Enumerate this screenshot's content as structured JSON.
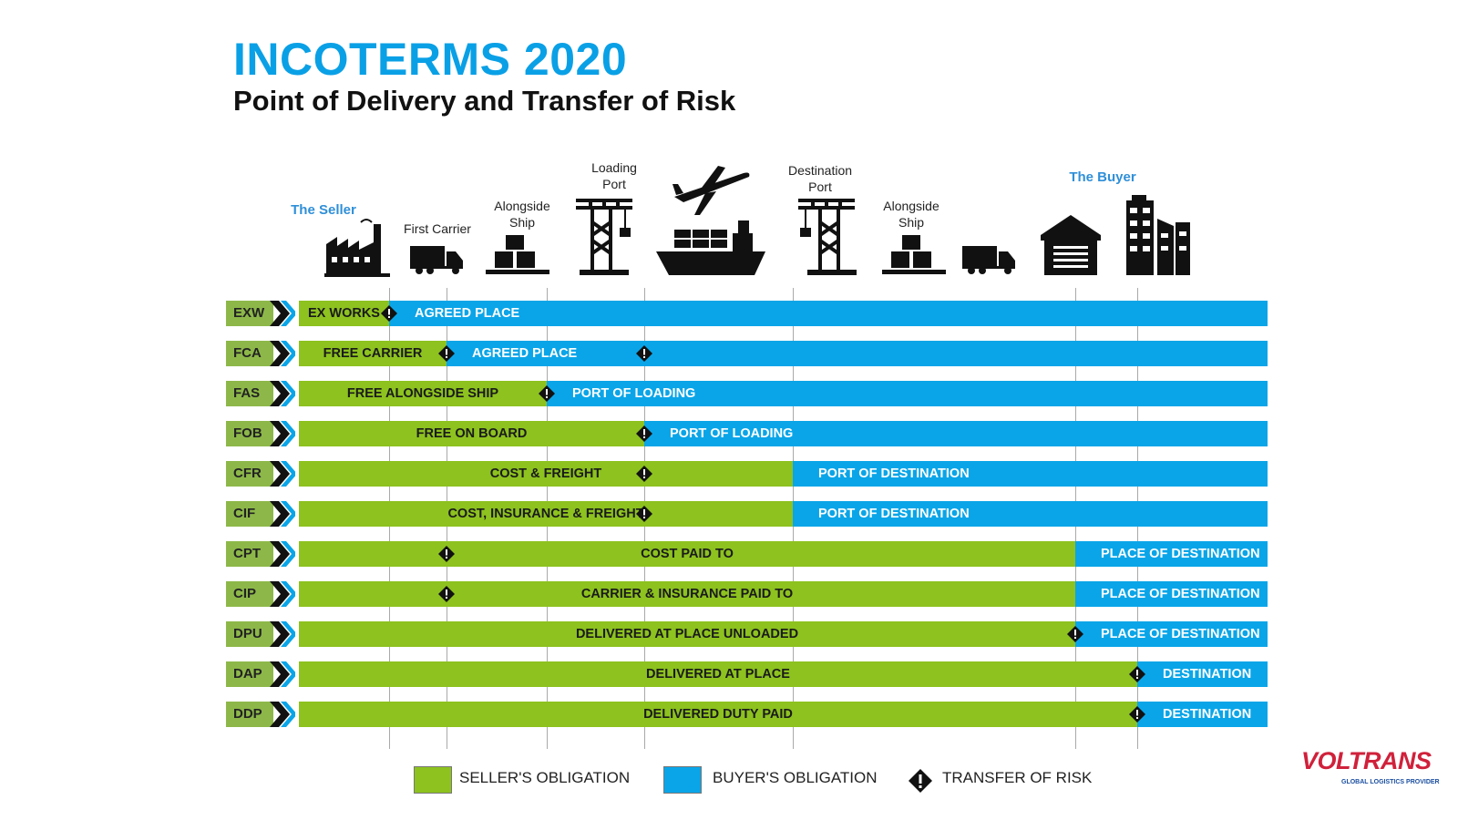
{
  "title": "INCOTERMS 2020",
  "subtitle": "Point of Delivery and Transfer of Risk",
  "stages": {
    "seller": "The Seller",
    "first_carrier": "First Carrier",
    "alongside_ship_1": "Alongside Ship",
    "loading_port": "Loading Port",
    "destination_port": "Destination Port",
    "alongside_ship_2": "Alongside Ship",
    "buyer": "The Buyer"
  },
  "rows": [
    {
      "code": "EXW",
      "seller_label": "EX WORKS",
      "buyer_label": "AGREED PLACE"
    },
    {
      "code": "FCA",
      "seller_label": "FREE CARRIER",
      "buyer_label": "AGREED PLACE"
    },
    {
      "code": "FAS",
      "seller_label": "FREE ALONGSIDE SHIP",
      "buyer_label": "PORT OF LOADING"
    },
    {
      "code": "FOB",
      "seller_label": "FREE  ON BOARD",
      "buyer_label": "PORT OF LOADING"
    },
    {
      "code": "CFR",
      "seller_label": "COST & FREIGHT",
      "buyer_label": "PORT OF DESTINATION"
    },
    {
      "code": "CIF",
      "seller_label": "COST, INSURANCE & FREIGHT",
      "buyer_label": "PORT OF DESTINATION"
    },
    {
      "code": "CPT",
      "seller_label": "COST PAID TO",
      "buyer_label": "PLACE OF DESTINATION"
    },
    {
      "code": "CIP",
      "seller_label": "CARRIER & INSURANCE PAID TO",
      "buyer_label": "PLACE OF DESTINATION"
    },
    {
      "code": "DPU",
      "seller_label": "DELIVERED AT PLACE UNLOADED",
      "buyer_label": "PLACE OF DESTINATION"
    },
    {
      "code": "DAP",
      "seller_label": "DELIVERED AT PLACE",
      "buyer_label": "DESTINATION"
    },
    {
      "code": "DDP",
      "seller_label": "DELIVERED DUTY PAID",
      "buyer_label": "DESTINATION"
    }
  ],
  "legend": {
    "seller": "SELLER'S OBLIGATION",
    "buyer": "BUYER'S OBLIGATION",
    "risk": "TRANSFER OF RISK"
  },
  "colors": {
    "seller": "#8dc21f",
    "buyer": "#0aa5e8",
    "code_bg": "#8db849",
    "title": "#0aa0e6"
  },
  "logo": {
    "name": "VOLTRANS",
    "tagline": "GLOBAL LOGISTICS PROVIDER"
  }
}
